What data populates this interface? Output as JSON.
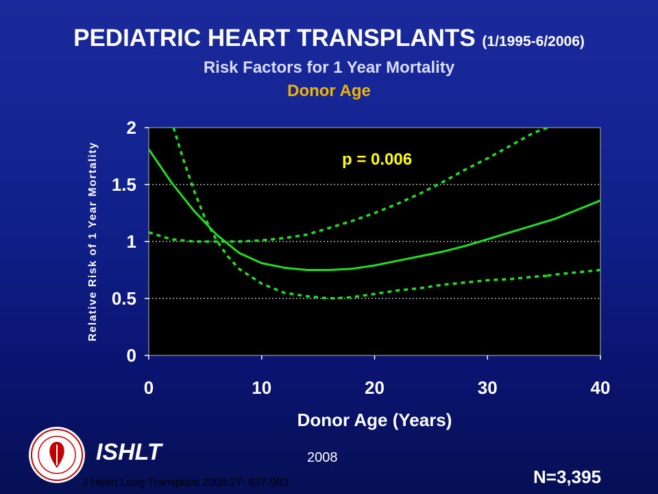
{
  "header": {
    "title": "PEDIATRIC HEART TRANSPLANTS",
    "date_range": "(1/1995-6/2006)",
    "subtitle": "Risk Factors for 1 Year Mortality",
    "variable": "Donor Age"
  },
  "footer": {
    "org": "ISHLT",
    "year": "2008",
    "citation": "J Heart Lung Transplant 2008;27: 937-983",
    "n_count": "N=3,395"
  },
  "colors": {
    "curve": "#22dd22",
    "annotation": "#ffff00",
    "axis_text": "#ffffff",
    "plot_bg": "#000000"
  },
  "chart_data": {
    "type": "line",
    "title": "PEDIATRIC HEART TRANSPLANTS (1/1995-6/2006)",
    "subtitle": "Risk Factors for 1 Year Mortality",
    "xlabel": "Donor Age (Years)",
    "ylabel": "Relative Risk of 1 Year Mortality",
    "xlim": [
      0,
      40
    ],
    "ylim": [
      0,
      2
    ],
    "xticks": [
      0,
      10,
      20,
      30,
      40
    ],
    "yticks": [
      0,
      0.5,
      1,
      1.5,
      2
    ],
    "ytick_labels": [
      "0",
      "0.5",
      "1",
      "1.5",
      "2"
    ],
    "grid": "horizontal dotted",
    "annotation": "p = 0.006",
    "series": [
      {
        "style": "solid",
        "x": [
          0,
          2,
          4,
          6,
          8,
          10,
          12,
          14,
          16,
          18,
          20,
          22,
          24,
          26,
          28,
          30,
          32,
          34,
          36,
          38,
          40
        ],
        "y": [
          1.81,
          1.52,
          1.27,
          1.06,
          0.9,
          0.81,
          0.77,
          0.75,
          0.75,
          0.76,
          0.79,
          0.83,
          0.87,
          0.91,
          0.96,
          1.02,
          1.08,
          1.14,
          1.2,
          1.28,
          1.36
        ]
      },
      {
        "style": "dotted",
        "x": [
          2.2,
          3,
          4,
          5,
          6,
          7,
          8,
          10,
          12,
          14,
          16,
          18,
          20,
          22,
          24,
          26,
          28,
          30,
          32,
          34,
          35.3
        ],
        "y": [
          2.0,
          1.74,
          1.45,
          1.2,
          1.01,
          0.87,
          0.76,
          0.63,
          0.55,
          0.52,
          0.5,
          0.51,
          0.54,
          0.57,
          0.59,
          0.62,
          0.64,
          0.66,
          0.67,
          0.69,
          0.7
        ]
      },
      {
        "style": "dotted",
        "x": [
          0,
          2,
          4,
          6,
          8,
          10,
          12,
          14,
          16,
          18,
          20,
          22,
          24,
          26,
          28,
          30,
          32,
          34,
          35.3
        ],
        "y": [
          1.08,
          1.02,
          1.0,
          1.0,
          1.0,
          1.01,
          1.03,
          1.06,
          1.12,
          1.18,
          1.25,
          1.33,
          1.42,
          1.52,
          1.63,
          1.73,
          1.84,
          1.95,
          2.0
        ]
      },
      {
        "style": "dotted",
        "x": [
          35.3,
          36,
          38,
          40
        ],
        "y": [
          0.7,
          0.71,
          0.73,
          0.75
        ]
      }
    ]
  }
}
